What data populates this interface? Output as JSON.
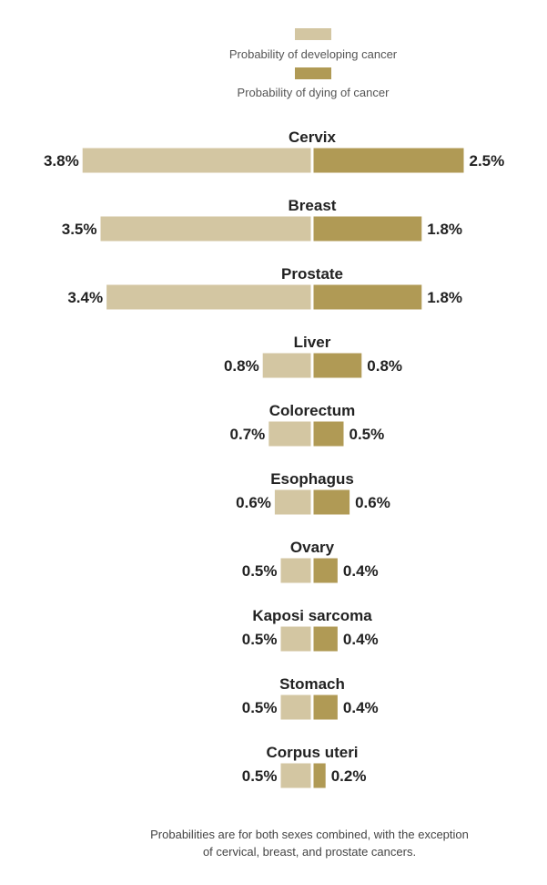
{
  "chart_data": {
    "type": "bar",
    "title": "",
    "xlabel": "",
    "ylabel": "",
    "xlim": [
      0,
      4
    ],
    "categories": [
      "Cervix",
      "Breast",
      "Prostate",
      "Liver",
      "Colorectum",
      "Esophagus",
      "Ovary",
      "Kaposi sarcoma",
      "Stomach",
      "Corpus uteri"
    ],
    "series": [
      {
        "name": "Probability of developing cancer",
        "color": "#d3c6a2",
        "values": [
          3.8,
          3.5,
          3.4,
          0.8,
          0.7,
          0.6,
          0.5,
          0.5,
          0.5,
          0.5
        ],
        "labels": [
          "3.8%",
          "3.5%",
          "3.4%",
          "0.8%",
          "0.7%",
          "0.6%",
          "0.5%",
          "0.5%",
          "0.5%",
          "0.5%"
        ]
      },
      {
        "name": "Probability of dying of cancer",
        "color": "#b09a55",
        "values": [
          2.5,
          1.8,
          1.8,
          0.8,
          0.5,
          0.6,
          0.4,
          0.4,
          0.4,
          0.2
        ],
        "labels": [
          "2.5%",
          "1.8%",
          "1.8%",
          "0.8%",
          "0.5%",
          "0.6%",
          "0.4%",
          "0.4%",
          "0.4%",
          "0.2%"
        ]
      }
    ],
    "legend_position": "top-center",
    "grid": false
  },
  "footnote": {
    "line1": "Probabilities are for both sexes combined, with the exception",
    "line2": "of cervical, breast, and prostate cancers."
  }
}
